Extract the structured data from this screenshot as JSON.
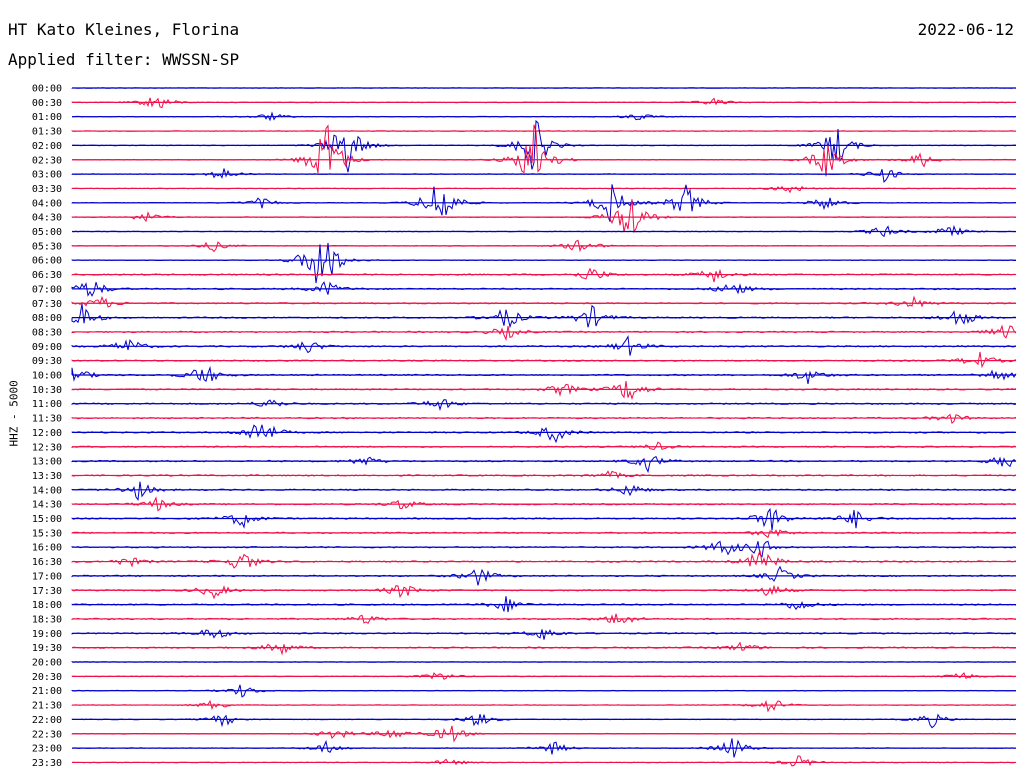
{
  "header": {
    "station": "HT Kato Kleines, Florina",
    "date": "2022-06-12",
    "filter": "Applied filter: WWSSN-SP"
  },
  "chart_data": {
    "type": "line",
    "title": "HT Kato Kleines, Florina",
    "subtitle": "Applied filter: WWSSN-SP",
    "ylabel": "HHZ - 5000",
    "xlabel": "",
    "rows": [
      "00:00",
      "00:30",
      "01:00",
      "01:30",
      "02:00",
      "02:30",
      "03:00",
      "03:30",
      "04:00",
      "04:30",
      "05:00",
      "05:30",
      "06:00",
      "06:30",
      "07:00",
      "07:30",
      "08:00",
      "08:30",
      "09:00",
      "09:30",
      "10:00",
      "10:30",
      "11:00",
      "11:30",
      "12:00",
      "12:30",
      "13:00",
      "13:30",
      "14:00",
      "14:30",
      "15:00",
      "15:30",
      "16:00",
      "16:30",
      "17:00",
      "17:30",
      "18:00",
      "18:30",
      "19:00",
      "19:30",
      "20:00",
      "20:30",
      "21:00",
      "21:30",
      "22:00",
      "22:30",
      "23:00",
      "23:30"
    ],
    "colors": [
      "#0000cc",
      "#f0104a"
    ],
    "grid": false,
    "events": [
      {
        "row": 1,
        "pos": 0.09,
        "amp": 0.7
      },
      {
        "row": 1,
        "pos": 0.68,
        "amp": 0.3
      },
      {
        "row": 2,
        "pos": 0.21,
        "amp": 0.3
      },
      {
        "row": 2,
        "pos": 0.6,
        "amp": 0.3
      },
      {
        "row": 4,
        "pos": 0.29,
        "amp": 2.4
      },
      {
        "row": 4,
        "pos": 0.49,
        "amp": 2.2
      },
      {
        "row": 4,
        "pos": 0.81,
        "amp": 1.6
      },
      {
        "row": 5,
        "pos": 0.27,
        "amp": 3.2
      },
      {
        "row": 5,
        "pos": 0.49,
        "amp": 3.0
      },
      {
        "row": 5,
        "pos": 0.8,
        "amp": 1.4
      },
      {
        "row": 5,
        "pos": 0.9,
        "amp": 0.6
      },
      {
        "row": 6,
        "pos": 0.16,
        "amp": 0.5
      },
      {
        "row": 6,
        "pos": 0.86,
        "amp": 0.6
      },
      {
        "row": 7,
        "pos": 0.76,
        "amp": 0.4
      },
      {
        "row": 8,
        "pos": 0.2,
        "amp": 0.4
      },
      {
        "row": 8,
        "pos": 0.39,
        "amp": 2.4
      },
      {
        "row": 8,
        "pos": 0.57,
        "amp": 1.6
      },
      {
        "row": 8,
        "pos": 0.65,
        "amp": 1.4
      },
      {
        "row": 8,
        "pos": 0.8,
        "amp": 0.6
      },
      {
        "row": 9,
        "pos": 0.59,
        "amp": 2.4
      },
      {
        "row": 9,
        "pos": 0.08,
        "amp": 0.4
      },
      {
        "row": 10,
        "pos": 0.86,
        "amp": 0.5
      },
      {
        "row": 10,
        "pos": 0.93,
        "amp": 0.5
      },
      {
        "row": 11,
        "pos": 0.54,
        "amp": 0.7
      },
      {
        "row": 11,
        "pos": 0.15,
        "amp": 0.4
      },
      {
        "row": 12,
        "pos": 0.26,
        "amp": 1.8
      },
      {
        "row": 12,
        "pos": 0.27,
        "amp": 1.2
      },
      {
        "row": 13,
        "pos": 0.55,
        "amp": 0.6
      },
      {
        "row": 13,
        "pos": 0.68,
        "amp": 0.6
      },
      {
        "row": 14,
        "pos": 0.02,
        "amp": 0.8
      },
      {
        "row": 14,
        "pos": 0.27,
        "amp": 0.6
      },
      {
        "row": 14,
        "pos": 0.7,
        "amp": 0.6
      },
      {
        "row": 15,
        "pos": 0.03,
        "amp": 0.5
      },
      {
        "row": 15,
        "pos": 0.89,
        "amp": 0.5
      },
      {
        "row": 16,
        "pos": 0.01,
        "amp": 1.0
      },
      {
        "row": 16,
        "pos": 0.46,
        "amp": 0.9
      },
      {
        "row": 16,
        "pos": 0.55,
        "amp": 0.9
      },
      {
        "row": 16,
        "pos": 0.94,
        "amp": 0.8
      },
      {
        "row": 17,
        "pos": 0.46,
        "amp": 0.5
      },
      {
        "row": 17,
        "pos": 0.99,
        "amp": 0.6
      },
      {
        "row": 18,
        "pos": 0.06,
        "amp": 0.6
      },
      {
        "row": 18,
        "pos": 0.59,
        "amp": 0.7
      },
      {
        "row": 18,
        "pos": 0.25,
        "amp": 0.5
      },
      {
        "row": 19,
        "pos": 0.96,
        "amp": 0.7
      },
      {
        "row": 20,
        "pos": 0.0,
        "amp": 0.8
      },
      {
        "row": 20,
        "pos": 0.14,
        "amp": 0.9
      },
      {
        "row": 20,
        "pos": 0.78,
        "amp": 0.6
      },
      {
        "row": 20,
        "pos": 0.98,
        "amp": 0.5
      },
      {
        "row": 21,
        "pos": 0.59,
        "amp": 1.0
      },
      {
        "row": 21,
        "pos": 0.52,
        "amp": 0.5
      },
      {
        "row": 22,
        "pos": 0.39,
        "amp": 0.5
      },
      {
        "row": 22,
        "pos": 0.21,
        "amp": 0.4
      },
      {
        "row": 23,
        "pos": 0.93,
        "amp": 0.4
      },
      {
        "row": 24,
        "pos": 0.2,
        "amp": 1.2
      },
      {
        "row": 24,
        "pos": 0.51,
        "amp": 0.8
      },
      {
        "row": 25,
        "pos": 0.62,
        "amp": 0.3
      },
      {
        "row": 26,
        "pos": 0.61,
        "amp": 0.7
      },
      {
        "row": 26,
        "pos": 0.31,
        "amp": 0.4
      },
      {
        "row": 26,
        "pos": 0.99,
        "amp": 0.6
      },
      {
        "row": 27,
        "pos": 0.57,
        "amp": 0.3
      },
      {
        "row": 28,
        "pos": 0.07,
        "amp": 0.7
      },
      {
        "row": 28,
        "pos": 0.59,
        "amp": 0.5
      },
      {
        "row": 29,
        "pos": 0.09,
        "amp": 0.5
      },
      {
        "row": 29,
        "pos": 0.35,
        "amp": 0.4
      },
      {
        "row": 30,
        "pos": 0.18,
        "amp": 0.7
      },
      {
        "row": 30,
        "pos": 0.74,
        "amp": 1.0
      },
      {
        "row": 30,
        "pos": 0.83,
        "amp": 0.7
      },
      {
        "row": 31,
        "pos": 0.74,
        "amp": 0.4
      },
      {
        "row": 32,
        "pos": 0.69,
        "amp": 0.7
      },
      {
        "row": 32,
        "pos": 0.73,
        "amp": 0.7
      },
      {
        "row": 33,
        "pos": 0.18,
        "amp": 0.9
      },
      {
        "row": 33,
        "pos": 0.73,
        "amp": 1.0
      },
      {
        "row": 33,
        "pos": 0.06,
        "amp": 0.4
      },
      {
        "row": 34,
        "pos": 0.43,
        "amp": 0.7
      },
      {
        "row": 34,
        "pos": 0.75,
        "amp": 0.6
      },
      {
        "row": 35,
        "pos": 0.15,
        "amp": 0.6
      },
      {
        "row": 35,
        "pos": 0.35,
        "amp": 0.6
      },
      {
        "row": 35,
        "pos": 0.74,
        "amp": 0.5
      },
      {
        "row": 36,
        "pos": 0.46,
        "amp": 0.6
      },
      {
        "row": 36,
        "pos": 0.77,
        "amp": 0.5
      },
      {
        "row": 37,
        "pos": 0.58,
        "amp": 0.6
      },
      {
        "row": 37,
        "pos": 0.31,
        "amp": 0.4
      },
      {
        "row": 38,
        "pos": 0.15,
        "amp": 0.5
      },
      {
        "row": 38,
        "pos": 0.5,
        "amp": 0.5
      },
      {
        "row": 39,
        "pos": 0.22,
        "amp": 0.6
      },
      {
        "row": 39,
        "pos": 0.71,
        "amp": 0.4
      },
      {
        "row": 41,
        "pos": 0.39,
        "amp": 0.4
      },
      {
        "row": 41,
        "pos": 0.94,
        "amp": 0.4
      },
      {
        "row": 42,
        "pos": 0.18,
        "amp": 0.5
      },
      {
        "row": 43,
        "pos": 0.74,
        "amp": 0.6
      },
      {
        "row": 43,
        "pos": 0.15,
        "amp": 0.4
      },
      {
        "row": 44,
        "pos": 0.16,
        "amp": 0.5
      },
      {
        "row": 44,
        "pos": 0.43,
        "amp": 0.6
      },
      {
        "row": 44,
        "pos": 0.91,
        "amp": 0.6
      },
      {
        "row": 45,
        "pos": 0.4,
        "amp": 0.8
      },
      {
        "row": 45,
        "pos": 0.28,
        "amp": 0.5
      },
      {
        "row": 45,
        "pos": 0.34,
        "amp": 0.5
      },
      {
        "row": 46,
        "pos": 0.27,
        "amp": 0.5
      },
      {
        "row": 46,
        "pos": 0.7,
        "amp": 0.9
      },
      {
        "row": 46,
        "pos": 0.51,
        "amp": 0.5
      },
      {
        "row": 47,
        "pos": 0.4,
        "amp": 0.3
      },
      {
        "row": 47,
        "pos": 0.77,
        "amp": 0.5
      }
    ]
  }
}
